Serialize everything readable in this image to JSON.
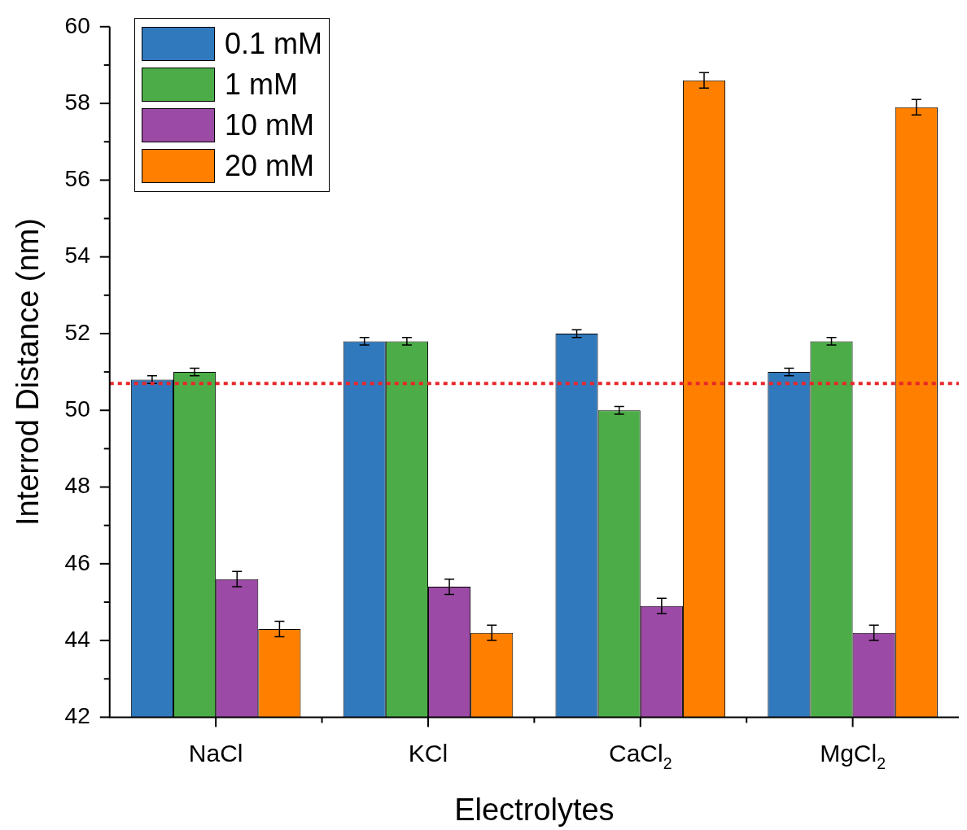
{
  "chart_data": {
    "type": "bar",
    "xlabel": "Electrolytes",
    "ylabel": "Interrod Distance (nm)",
    "categories": [
      "NaCl",
      "KCl",
      "CaCl$_{2}$",
      "MgCl$_{2}$"
    ],
    "series": [
      {
        "name": "0.1 mM",
        "color": "#3079bd",
        "values": [
          50.8,
          51.8,
          52.0,
          51.0
        ],
        "errors": [
          0.1,
          0.1,
          0.1,
          0.1
        ]
      },
      {
        "name": "1 mM",
        "color": "#4cad48",
        "values": [
          51.0,
          51.8,
          50.0,
          51.8
        ],
        "errors": [
          0.1,
          0.1,
          0.1,
          0.1
        ]
      },
      {
        "name": "10 mM",
        "color": "#9b4aa5",
        "values": [
          45.6,
          45.4,
          44.9,
          44.2
        ],
        "errors": [
          0.2,
          0.2,
          0.2,
          0.2
        ]
      },
      {
        "name": "20 mM",
        "color": "#ff7f00",
        "values": [
          44.3,
          44.2,
          58.6,
          57.9
        ],
        "errors": [
          0.2,
          0.2,
          0.2,
          0.2
        ]
      }
    ],
    "ylim": [
      42,
      60
    ],
    "yticks": [
      42,
      {
        "value": 43,
        "label": null
      },
      44,
      {
        "value": 45,
        "label": null
      },
      46,
      {
        "value": 47,
        "label": null
      },
      48,
      {
        "value": 49,
        "label": null
      },
      50,
      {
        "value": 51,
        "label": null
      },
      52,
      {
        "value": 53,
        "label": null
      },
      54,
      {
        "value": 55,
        "label": null
      },
      56,
      {
        "value": 57,
        "label": null
      },
      58,
      {
        "value": 59,
        "label": null
      },
      60
    ],
    "ref_lines": [
      {
        "axis": "y",
        "value": 50.7,
        "color": "#e8262a",
        "line_style": "dotted"
      }
    ],
    "legend": "top left"
  }
}
